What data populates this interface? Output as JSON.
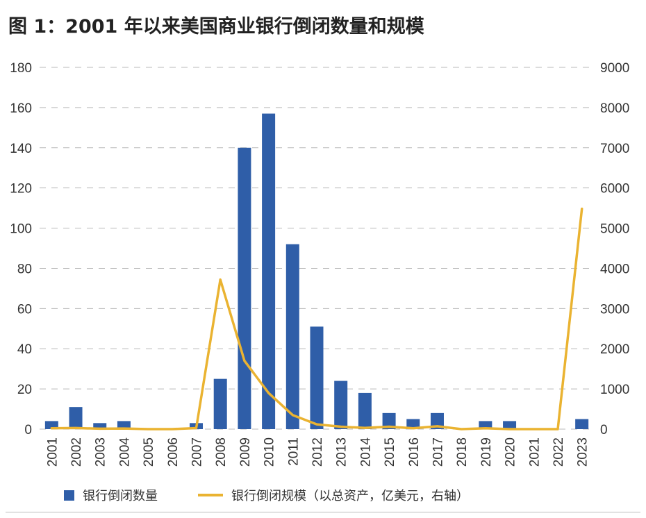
{
  "title": "图 1：2001 年以来美国商业银行倒闭数量和规模",
  "colors": {
    "bar": "#2f5ea8",
    "line": "#eab331",
    "grid": "#b8b8b8"
  },
  "chart_data": {
    "type": "bar",
    "categories": [
      "2001",
      "2002",
      "2003",
      "2004",
      "2005",
      "2006",
      "2007",
      "2008",
      "2009",
      "2010",
      "2011",
      "2012",
      "2013",
      "2014",
      "2015",
      "2016",
      "2017",
      "2018",
      "2019",
      "2020",
      "2021",
      "2022",
      "2023"
    ],
    "series": [
      {
        "name": "银行倒闭数量",
        "type": "bar",
        "axis": "left",
        "values": [
          4,
          11,
          3,
          4,
          0,
          0,
          3,
          25,
          140,
          157,
          92,
          51,
          24,
          18,
          8,
          5,
          8,
          0,
          4,
          4,
          0,
          0,
          5
        ]
      },
      {
        "name": "银行倒闭规模（以总资产，亿美元，右轴）",
        "type": "line",
        "axis": "right",
        "values": [
          20,
          28,
          10,
          16,
          0,
          0,
          26,
          3720,
          1700,
          900,
          350,
          120,
          60,
          30,
          60,
          20,
          70,
          0,
          20,
          0,
          0,
          0,
          5480
        ]
      }
    ],
    "y_left": {
      "min": 0,
      "max": 180,
      "ticks": [
        0,
        20,
        40,
        60,
        80,
        100,
        120,
        140,
        160,
        180
      ]
    },
    "y_right": {
      "min": 0,
      "max": 9000,
      "ticks": [
        0,
        1000,
        2000,
        3000,
        4000,
        5000,
        6000,
        7000,
        8000,
        9000
      ]
    },
    "grid": true,
    "legend_position": "bottom"
  }
}
